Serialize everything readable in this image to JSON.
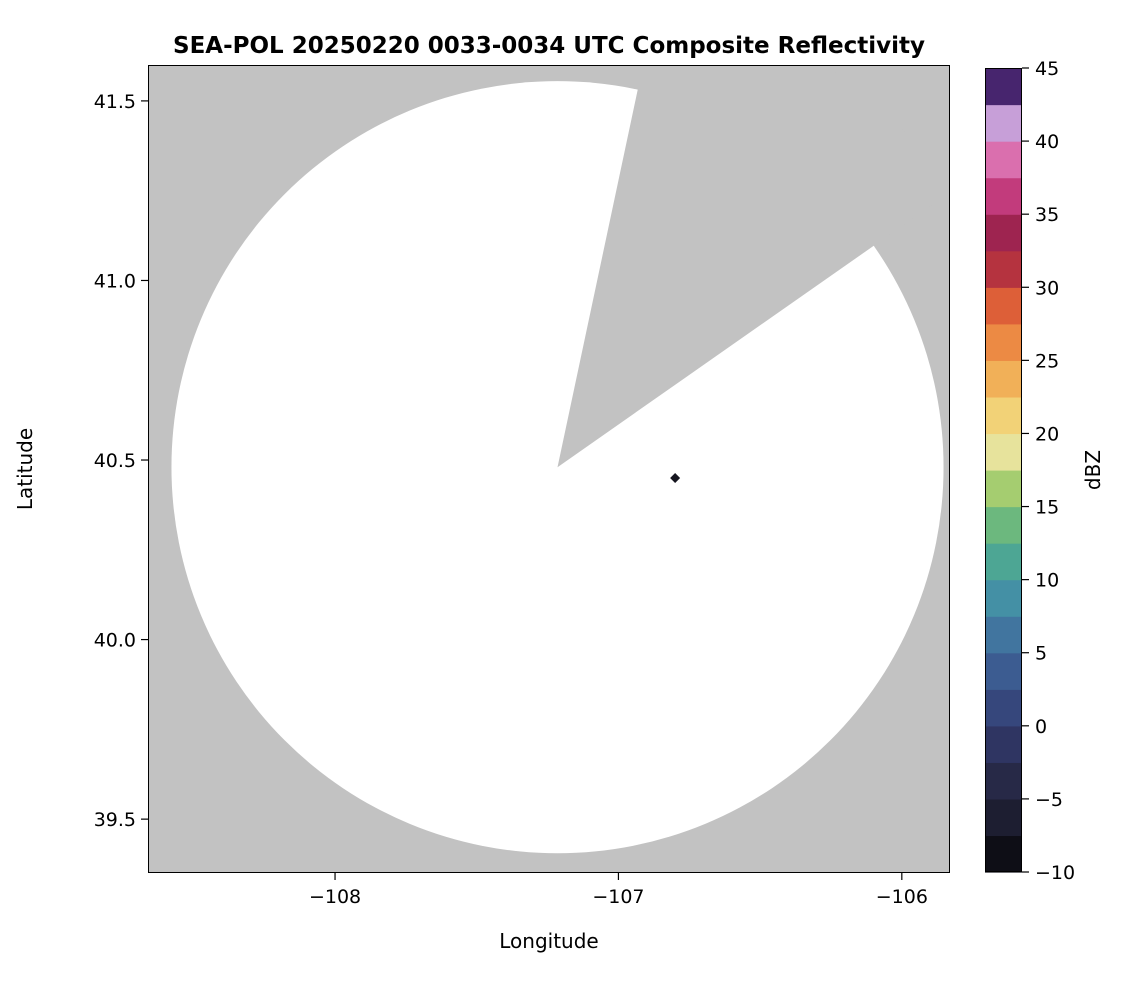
{
  "chart_data": {
    "type": "heatmap",
    "title": "SEA-POL 20250220 0033-0034 UTC Composite Reflectivity",
    "xlabel": "Longitude",
    "ylabel": "Latitude",
    "xlim": [
      -108.66,
      -105.83
    ],
    "ylim": [
      39.35,
      41.6
    ],
    "grid": false,
    "xticks": [
      {
        "value": -108,
        "label": "−108"
      },
      {
        "value": -107,
        "label": "−107"
      },
      {
        "value": -106,
        "label": "−106"
      }
    ],
    "yticks": [
      {
        "value": 39.5,
        "label": "39.5"
      },
      {
        "value": 40.0,
        "label": "40.0"
      },
      {
        "value": 40.5,
        "label": "40.5"
      },
      {
        "value": 41.0,
        "label": "41.0"
      },
      {
        "value": 41.5,
        "label": "41.5"
      }
    ],
    "colorbar": {
      "label": "dBZ",
      "min": -10,
      "max": 45,
      "ticks": [
        {
          "value": 45,
          "label": "45"
        },
        {
          "value": 40,
          "label": "40"
        },
        {
          "value": 35,
          "label": "35"
        },
        {
          "value": 30,
          "label": "30"
        },
        {
          "value": 25,
          "label": "25"
        },
        {
          "value": 20,
          "label": "20"
        },
        {
          "value": 15,
          "label": "15"
        },
        {
          "value": 10,
          "label": "10"
        },
        {
          "value": 5,
          "label": "5"
        },
        {
          "value": 0,
          "label": "0"
        },
        {
          "value": -5,
          "label": "−5"
        },
        {
          "value": -10,
          "label": "−10"
        }
      ],
      "band_colors_low_to_high": [
        "#0e0e16",
        "#1d1e31",
        "#272947",
        "#2f3562",
        "#36477c",
        "#3c5c91",
        "#41759f",
        "#4490a5",
        "#4da694",
        "#6cb87e",
        "#a5cd70",
        "#e7e39c",
        "#f2d277",
        "#f1b058",
        "#ec8a44",
        "#dd5f38",
        "#b5333f",
        "#9e2450",
        "#c23b7c",
        "#da6fae",
        "#c79fd8",
        "#47256e"
      ]
    },
    "radar": {
      "center_lon": -107.215,
      "center_lat": 40.48,
      "radius_lat_deg": 1.075,
      "blocked_sector_azimuth_deg": [
        12,
        55
      ],
      "no_data_color": "#c2c2c2",
      "coverage_color": "#ffffff"
    },
    "points": [
      {
        "lon": -106.8,
        "lat": 40.45,
        "shape": "diamond",
        "color": "#15151f"
      }
    ]
  }
}
